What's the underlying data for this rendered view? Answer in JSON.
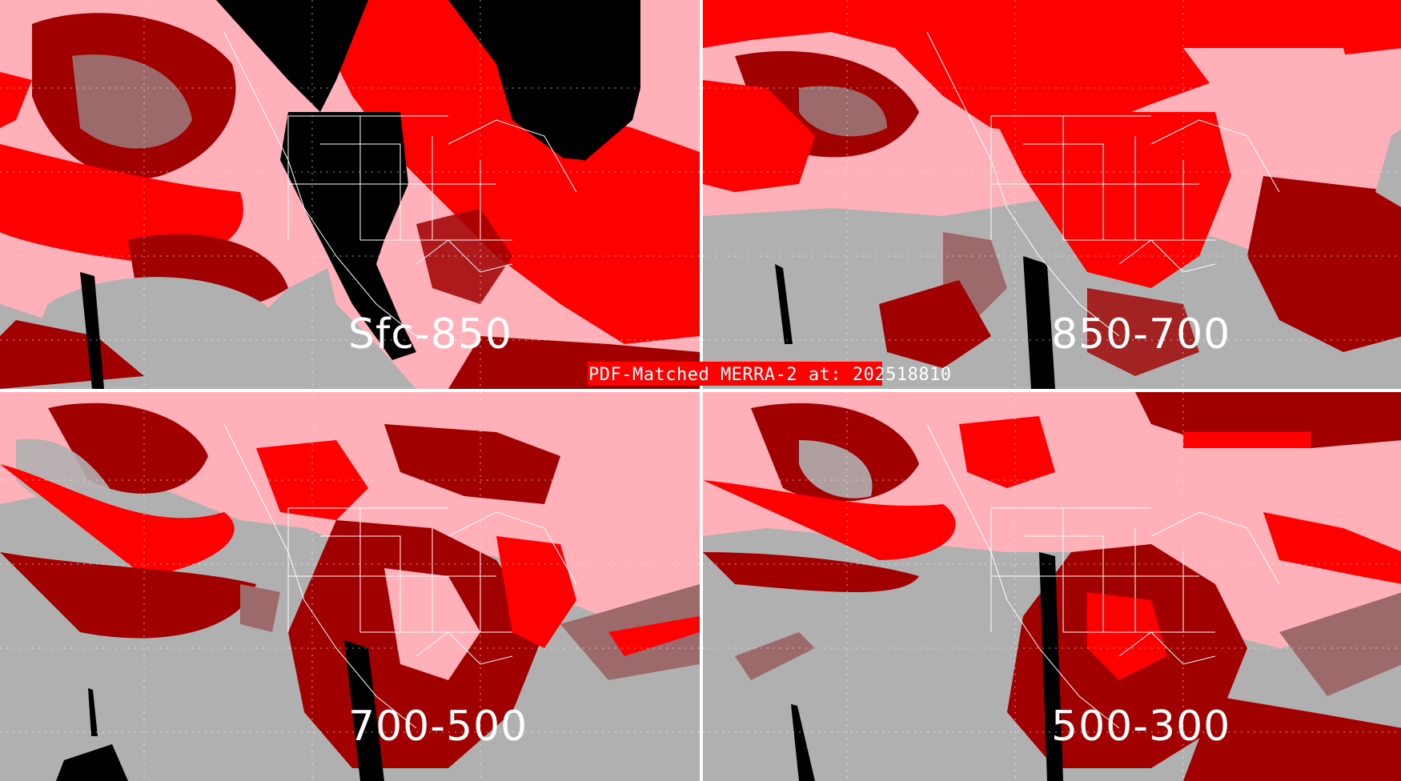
{
  "title": "PDF-Matched MERRA-2 at: 202518810",
  "colors": {
    "background_gray": "#b0b0b0",
    "pink": "#ffb0b8",
    "red": "#ff0000",
    "dark_red": "#a00000",
    "brown_gray": "#9c6a6a",
    "black": "#000000",
    "boundaries": "#ffffff",
    "title_banner": "#ff0000"
  },
  "panels": [
    {
      "label": "Sfc-850"
    },
    {
      "label": "850-700"
    },
    {
      "label": "700-500"
    },
    {
      "label": "500-300"
    }
  ]
}
